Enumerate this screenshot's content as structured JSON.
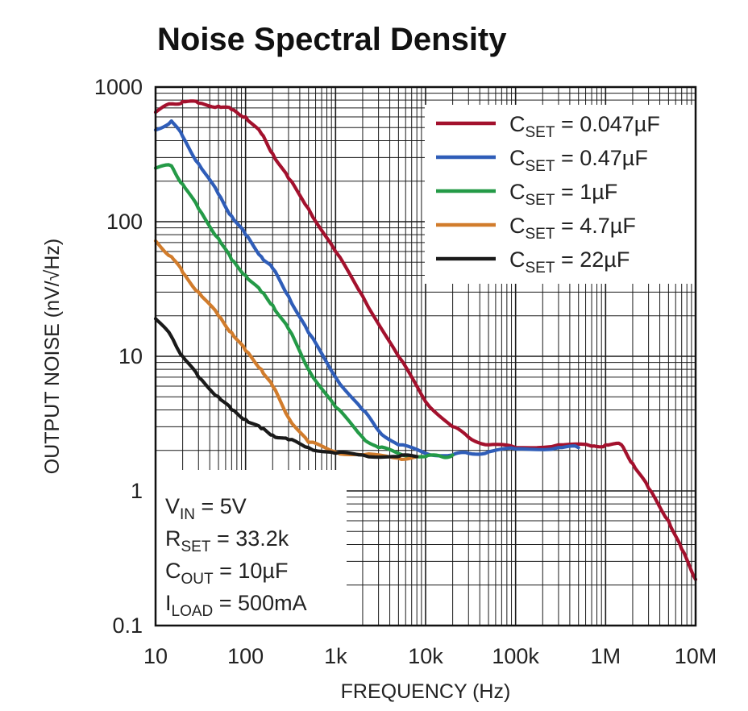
{
  "chart_data": {
    "type": "line",
    "title": "Noise Spectral Density",
    "xlabel": "FREQUENCY (Hz)",
    "ylabel": "OUTPUT NOISE (nV/√Hz)",
    "xscale": "log",
    "yscale": "log",
    "xlim": [
      10,
      10000000
    ],
    "ylim": [
      0.1,
      1000
    ],
    "grid": true,
    "legend_position": "top-right",
    "x_tick_labels": [
      "10",
      "100",
      "1k",
      "10k",
      "100k",
      "1M",
      "10M"
    ],
    "y_tick_labels": [
      "0.1",
      "1",
      "10",
      "100",
      "1000"
    ],
    "series": [
      {
        "label_main": "C",
        "label_sub": "SET",
        "label_tail": " = 0.047µF",
        "color": "#a3112d",
        "points": [
          [
            10,
            650
          ],
          [
            15,
            750
          ],
          [
            20,
            780
          ],
          [
            30,
            760
          ],
          [
            50,
            720
          ],
          [
            70,
            680
          ],
          [
            100,
            600
          ],
          [
            150,
            450
          ],
          [
            200,
            320
          ],
          [
            300,
            210
          ],
          [
            500,
            125
          ],
          [
            1000,
            60
          ],
          [
            2000,
            28
          ],
          [
            5000,
            10
          ],
          [
            10000,
            4.6
          ],
          [
            20000,
            3
          ],
          [
            30000,
            2.5
          ],
          [
            50000,
            2.2
          ],
          [
            100000,
            2.1
          ],
          [
            300000,
            2.2
          ],
          [
            700000,
            2.15
          ],
          [
            1000000,
            2.2
          ],
          [
            1500000,
            2.2
          ],
          [
            2000000,
            1.6
          ],
          [
            3000000,
            1.05
          ],
          [
            5000000,
            0.6
          ],
          [
            7000000,
            0.37
          ],
          [
            10000000,
            0.22
          ]
        ]
      },
      {
        "label_main": "C",
        "label_sub": "SET",
        "label_tail": " = 0.47µF",
        "color": "#2f5db8",
        "points": [
          [
            10,
            480
          ],
          [
            15,
            560
          ],
          [
            20,
            430
          ],
          [
            30,
            270
          ],
          [
            50,
            160
          ],
          [
            70,
            110
          ],
          [
            100,
            80
          ],
          [
            150,
            55
          ],
          [
            200,
            45
          ],
          [
            300,
            28
          ],
          [
            500,
            15
          ],
          [
            1000,
            7
          ],
          [
            2000,
            4
          ],
          [
            3000,
            2.8
          ],
          [
            5000,
            2.2
          ],
          [
            10000,
            1.9
          ],
          [
            20000,
            1.85
          ],
          [
            30000,
            1.9
          ],
          [
            50000,
            1.95
          ],
          [
            100000,
            2.05
          ],
          [
            300000,
            2.1
          ],
          [
            500000,
            2.1
          ]
        ]
      },
      {
        "label_main": "C",
        "label_sub": "SET",
        "label_tail": " = 1µF",
        "color": "#249a47",
        "points": [
          [
            10,
            250
          ],
          [
            15,
            260
          ],
          [
            20,
            190
          ],
          [
            30,
            125
          ],
          [
            50,
            75
          ],
          [
            70,
            52
          ],
          [
            100,
            40
          ],
          [
            150,
            30
          ],
          [
            200,
            24
          ],
          [
            300,
            16
          ],
          [
            500,
            8
          ],
          [
            1000,
            4.2
          ],
          [
            2000,
            2.5
          ],
          [
            3000,
            2.1
          ],
          [
            5000,
            1.9
          ],
          [
            10000,
            1.8
          ],
          [
            15000,
            1.8
          ],
          [
            20000,
            1.85
          ]
        ]
      },
      {
        "label_main": "C",
        "label_sub": "SET",
        "label_tail": " = 4.7µF",
        "color": "#d17c2c",
        "points": [
          [
            10,
            72
          ],
          [
            15,
            55
          ],
          [
            20,
            42
          ],
          [
            30,
            30
          ],
          [
            50,
            20
          ],
          [
            70,
            15
          ],
          [
            100,
            11
          ],
          [
            150,
            8
          ],
          [
            200,
            6
          ],
          [
            300,
            3.5
          ],
          [
            500,
            2.3
          ],
          [
            1000,
            1.95
          ],
          [
            2000,
            1.85
          ],
          [
            5000,
            1.75
          ],
          [
            8000,
            1.8
          ]
        ]
      },
      {
        "label_main": "C",
        "label_sub": "SET",
        "label_tail": " = 22µF",
        "color": "#1a1a1a",
        "points": [
          [
            10,
            19
          ],
          [
            15,
            14
          ],
          [
            20,
            10
          ],
          [
            30,
            7
          ],
          [
            50,
            5
          ],
          [
            70,
            4
          ],
          [
            100,
            3.4
          ],
          [
            150,
            2.9
          ],
          [
            200,
            2.6
          ],
          [
            300,
            2.4
          ],
          [
            500,
            2.1
          ],
          [
            1000,
            1.9
          ],
          [
            2000,
            1.85
          ],
          [
            5000,
            1.8
          ],
          [
            8000,
            1.8
          ]
        ]
      }
    ]
  },
  "conditions": [
    {
      "main": "V",
      "sub": "IN",
      "tail": " = 5V"
    },
    {
      "main": "R",
      "sub": "SET",
      "tail": " = 33.2k"
    },
    {
      "main": "C",
      "sub": "OUT",
      "tail": " = 10µF"
    },
    {
      "main": "I",
      "sub": "LOAD",
      "tail": " = 500mA"
    }
  ],
  "colors": {
    "background": "#ffffff",
    "grid": "#1a1a1a",
    "text": "#222222"
  }
}
